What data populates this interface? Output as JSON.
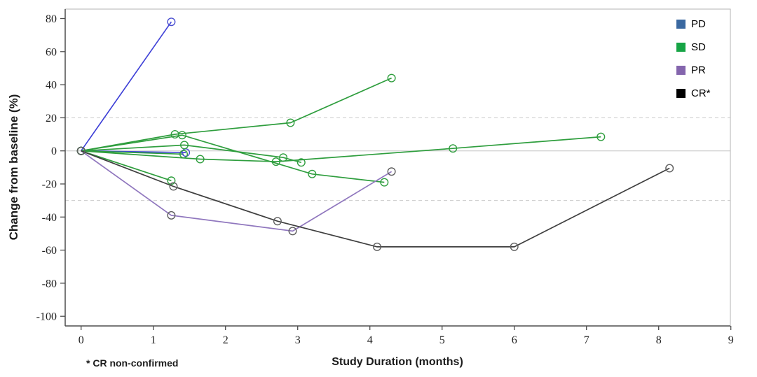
{
  "figure": {
    "footnote": "* CR non-confirmed"
  },
  "legend": {
    "position": "top-right",
    "items": [
      {
        "key": "pd",
        "label": "PD",
        "color": "#3a68a0"
      },
      {
        "key": "sd",
        "label": "SD",
        "color": "#16a445"
      },
      {
        "key": "pr",
        "label": "PR",
        "color": "#8465ad"
      },
      {
        "key": "cr",
        "label": "CR*",
        "color": "#000000"
      }
    ]
  },
  "chart_data": {
    "type": "line",
    "title": "",
    "xlabel": "Study Duration (months)",
    "ylabel": "Change from baseline (%)",
    "xlim": [
      0,
      9
    ],
    "ylim": [
      -100,
      80
    ],
    "x_ticks": [
      0,
      1,
      2,
      3,
      4,
      5,
      6,
      7,
      8,
      9
    ],
    "y_ticks": [
      80,
      60,
      40,
      20,
      0,
      -20,
      -40,
      -60,
      -80,
      -100
    ],
    "grid": "off",
    "legend_position": "top-right",
    "reference_lines": [
      {
        "y": 20,
        "style": "dashed"
      },
      {
        "y": 0,
        "style": "solid"
      },
      {
        "y": -30,
        "style": "dashed"
      }
    ],
    "series": [
      {
        "name": "PD subject 1",
        "group": "PD",
        "color": "#4345d8",
        "marker_color": "#4a4fd0",
        "points": [
          [
            0,
            0
          ],
          [
            1.25,
            78
          ]
        ]
      },
      {
        "name": "PD subject 2",
        "group": "PD",
        "color": "#4345d8",
        "marker_color": "#4a4fd0",
        "points": [
          [
            0,
            0
          ],
          [
            1.45,
            -1
          ]
        ]
      },
      {
        "name": "SD subject 1",
        "group": "SD",
        "color": "#2f9e3e",
        "marker_color": "#2f9e3e",
        "points": [
          [
            0,
            0
          ],
          [
            1.3,
            10
          ],
          [
            2.9,
            17
          ],
          [
            4.3,
            44
          ]
        ]
      },
      {
        "name": "SD subject 2",
        "group": "SD",
        "color": "#2f9e3e",
        "marker_color": "#2f9e3e",
        "points": [
          [
            0,
            0
          ],
          [
            1.4,
            9.5
          ],
          [
            3.2,
            -14
          ],
          [
            4.2,
            -19
          ]
        ]
      },
      {
        "name": "SD subject 3",
        "group": "SD",
        "color": "#2f9e3e",
        "marker_color": "#2f9e3e",
        "points": [
          [
            0,
            0
          ],
          [
            1.43,
            3.5
          ],
          [
            2.8,
            -4
          ],
          [
            3.05,
            -7
          ]
        ]
      },
      {
        "name": "SD subject 4",
        "group": "SD",
        "color": "#2f9e3e",
        "marker_color": "#2f9e3e",
        "points": [
          [
            0,
            0
          ],
          [
            1.65,
            -5
          ],
          [
            2.7,
            -6.5
          ],
          [
            5.15,
            1.5
          ],
          [
            7.2,
            8.5
          ]
        ]
      },
      {
        "name": "SD subject 5",
        "group": "SD",
        "color": "#2f9e3e",
        "marker_color": "#2f9e3e",
        "points": [
          [
            0,
            0
          ],
          [
            1.25,
            -18
          ]
        ]
      },
      {
        "name": "SD subject 6",
        "group": "SD",
        "color": "#2f9e3e",
        "marker_color": "#2f9e3e",
        "points": [
          [
            0,
            0
          ],
          [
            1.42,
            -2
          ]
        ]
      },
      {
        "name": "PR subject 1",
        "group": "PR",
        "color": "#9077be",
        "marker_color": "#5f5f5f",
        "points": [
          [
            0,
            0
          ],
          [
            1.25,
            -39
          ],
          [
            2.93,
            -48.5
          ],
          [
            4.3,
            -12.5
          ]
        ]
      },
      {
        "name": "CR subject 1",
        "group": "CR",
        "color": "#3f3f3f",
        "marker_color": "#5f5f5f",
        "points": [
          [
            0,
            0
          ],
          [
            1.28,
            -21.5
          ],
          [
            2.72,
            -42.5
          ],
          [
            4.1,
            -58
          ],
          [
            6.0,
            -58
          ],
          [
            8.15,
            -10.5
          ]
        ]
      }
    ]
  },
  "style": {
    "frame_color": "#b3b3b3",
    "axis_color": "#4d4d4d",
    "zero_line_color": "#c3c3c3",
    "dashed_line_color": "#c9c9c9",
    "text_color": "#1f1f1f"
  }
}
